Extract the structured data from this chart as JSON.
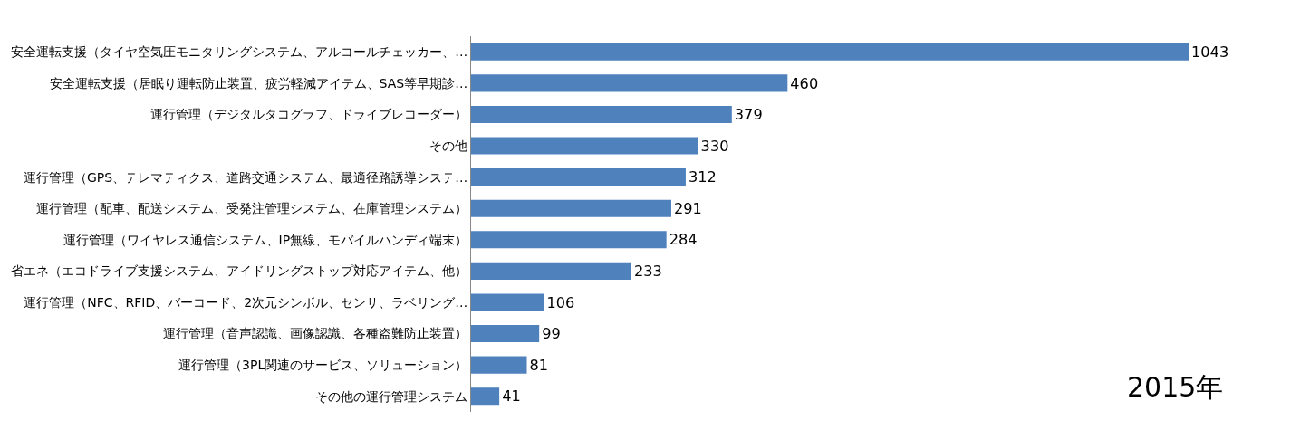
{
  "chart_data": {
    "type": "bar",
    "orientation": "horizontal",
    "data_labels": true,
    "color": "#4f81bd",
    "categories": [
      "安全運転支援（タイヤ空気圧モニタリングシステム、アルコールチェッカー、…",
      "安全運転支援（居眠り運転防止装置、疲労軽減アイテム、SAS等早期診…",
      "運行管理（デジタルタコグラフ、ドライブレコーダー）",
      "その他",
      "運行管理（GPS、テレマティクス、道路交通システム、最適径路誘導システ…",
      "運行管理（配車、配送システム、受発注管理システム、在庫管理システム）",
      "運行管理（ワイヤレス通信システム、IP無線、モバイルハンディ端末）",
      "省エネ（エコドライブ支援システム、アイドリングストップ対応アイテム、他）",
      "運行管理（NFC、RFID、バーコード、2次元シンボル、センサ、ラベリング…",
      "運行管理（音声認識、画像認識、各種盗難防止装置）",
      "運行管理（3PL関連のサービス、ソリューション）",
      "その他の運行管理システム"
    ],
    "values": [
      1043,
      460,
      379,
      330,
      312,
      291,
      284,
      233,
      106,
      99,
      81,
      41
    ],
    "annotations": [
      "2015年"
    ]
  }
}
